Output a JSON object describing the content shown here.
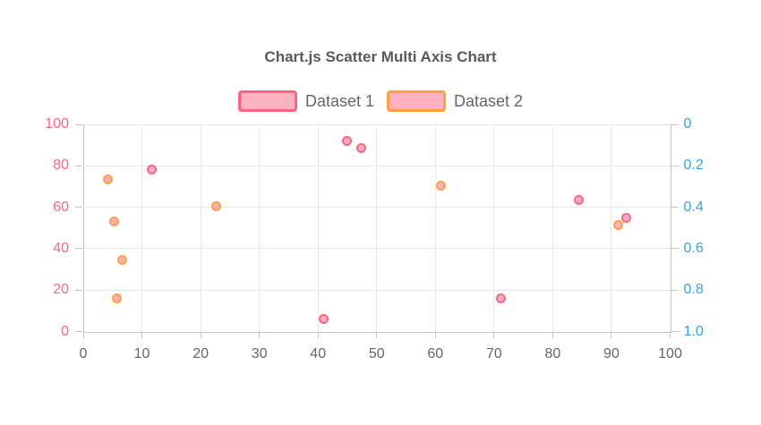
{
  "title": "Chart.js Scatter Multi Axis Chart",
  "colors": {
    "title_text": "#58595b",
    "legend_text": "#666666",
    "x_tick_text": "#666666",
    "left_axis_text": "#ff6384",
    "right_axis_text": "#36a2eb",
    "grid_line": "#e9e9e9",
    "axis_border": "#c3c3c3",
    "point_fill": "#ffb1c1",
    "dataset1_border": "#ff6384",
    "dataset2_border": "#ff9f40"
  },
  "chart_data": {
    "type": "scatter",
    "title": "Chart.js Scatter Multi Axis Chart",
    "grid": true,
    "legend_position": "top",
    "x_axis": {
      "min": 0,
      "max": 100,
      "tick_values": [
        0,
        10,
        20,
        30,
        40,
        50,
        60,
        70,
        80,
        90,
        100
      ],
      "tick_labels": [
        "0",
        "10",
        "20",
        "30",
        "40",
        "50",
        "60",
        "70",
        "80",
        "90",
        "100"
      ]
    },
    "y_axis_left": {
      "min": 0,
      "max": 100,
      "reversed": false,
      "tick_values": [
        0,
        20,
        40,
        60,
        80,
        100
      ],
      "tick_labels": [
        "0",
        "20",
        "40",
        "60",
        "80",
        "100"
      ]
    },
    "y_axis_right": {
      "min": 0,
      "max": 1,
      "reversed": true,
      "tick_values": [
        0,
        0.2,
        0.4,
        0.6,
        0.8,
        1
      ],
      "tick_labels": [
        "0",
        "0.2",
        "0.4",
        "0.6",
        "0.8",
        "1.0"
      ]
    },
    "series": [
      {
        "name": "Dataset 1",
        "axis": "left",
        "border_color": "#ff6384",
        "fill_color": "#ffb1c1",
        "points": [
          {
            "x": 11.6,
            "y": 78
          },
          {
            "x": 44.9,
            "y": 92
          },
          {
            "x": 47.3,
            "y": 88.5
          },
          {
            "x": 84.4,
            "y": 63.5
          },
          {
            "x": 92.5,
            "y": 55
          },
          {
            "x": 71.2,
            "y": 16
          },
          {
            "x": 41.0,
            "y": 6
          }
        ]
      },
      {
        "name": "Dataset 2",
        "axis": "right",
        "border_color": "#ff9f40",
        "fill_color": "#ffb1c1",
        "points": [
          {
            "x": 4.2,
            "y": 0.267
          },
          {
            "x": 5.2,
            "y": 0.47
          },
          {
            "x": 6.7,
            "y": 0.655
          },
          {
            "x": 5.7,
            "y": 0.84
          },
          {
            "x": 22.7,
            "y": 0.397
          },
          {
            "x": 60.9,
            "y": 0.295
          },
          {
            "x": 91.1,
            "y": 0.485
          }
        ]
      }
    ]
  }
}
